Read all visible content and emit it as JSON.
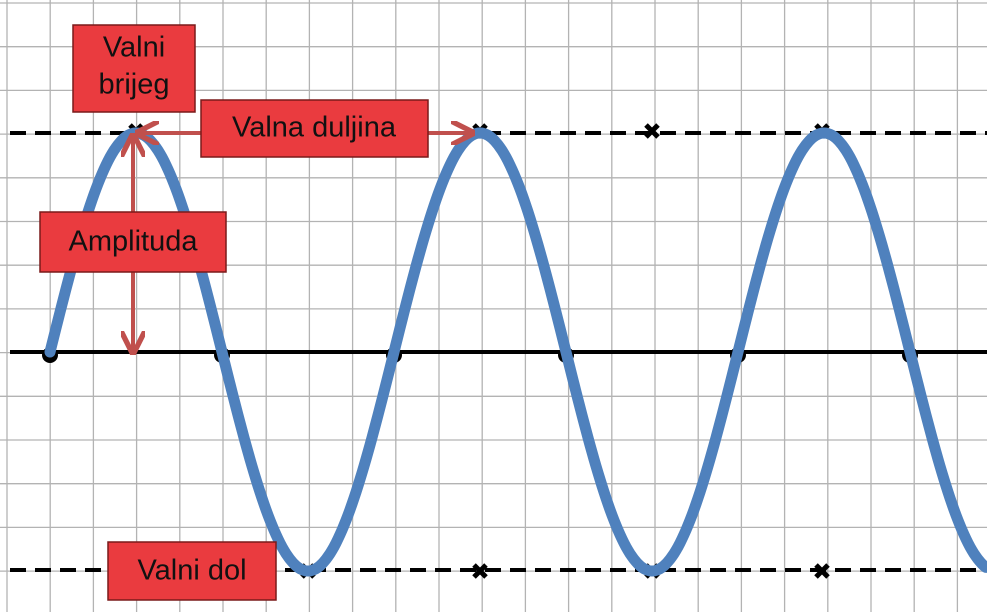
{
  "labels": {
    "crest": {
      "lines": [
        "Valni",
        "brijeg"
      ]
    },
    "wavelength": "Valna duljina",
    "amplitude": "Amplituda",
    "trough": "Valni dol"
  }
}
